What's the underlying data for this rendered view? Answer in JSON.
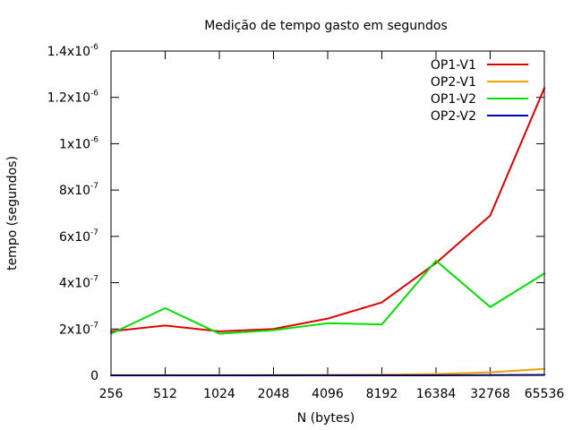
{
  "chart_data": {
    "type": "line",
    "title": "Medição de tempo gasto em segundos",
    "xlabel": "N (bytes)",
    "ylabel": "tempo (segundos)",
    "categories": [
      "256",
      "512",
      "1024",
      "2048",
      "4096",
      "8192",
      "16384",
      "32768",
      "65536"
    ],
    "y_ticks": [
      {
        "value": 0,
        "mantissa": "0",
        "exponent": ""
      },
      {
        "value": 2e-07,
        "mantissa": "2x10",
        "exponent": "-7"
      },
      {
        "value": 4e-07,
        "mantissa": "4x10",
        "exponent": "-7"
      },
      {
        "value": 6e-07,
        "mantissa": "6x10",
        "exponent": "-7"
      },
      {
        "value": 8e-07,
        "mantissa": "8x10",
        "exponent": "-7"
      },
      {
        "value": 1e-06,
        "mantissa": "1x10",
        "exponent": "-6"
      },
      {
        "value": 1.2e-06,
        "mantissa": "1.2x10",
        "exponent": "-6"
      },
      {
        "value": 1.4e-06,
        "mantissa": "1.4x10",
        "exponent": "-6"
      }
    ],
    "ylim": [
      0,
      1.4e-06
    ],
    "grid": false,
    "legend_position": "top-right",
    "series": [
      {
        "name": "OP1-V1",
        "color": "#e00000",
        "values": [
          1.9e-07,
          2.15e-07,
          1.9e-07,
          2e-07,
          2.45e-07,
          3.15e-07,
          4.85e-07,
          6.9e-07,
          1.24e-06
        ]
      },
      {
        "name": "OP2-V1",
        "color": "#f0a000",
        "values": [
          1e-09,
          1e-09,
          1e-09,
          1.5e-09,
          2e-09,
          3e-09,
          6e-09,
          1.3e-08,
          2.8e-08
        ]
      },
      {
        "name": "OP1-V2",
        "color": "#00e000",
        "values": [
          1.8e-07,
          2.9e-07,
          1.8e-07,
          1.95e-07,
          2.25e-07,
          2.2e-07,
          4.95e-07,
          2.95e-07,
          4.4e-07
        ]
      },
      {
        "name": "OP2-V2",
        "color": "#0000c0",
        "values": [
          0,
          0,
          0,
          0,
          0,
          0,
          0,
          1e-09,
          2e-09
        ]
      }
    ]
  }
}
